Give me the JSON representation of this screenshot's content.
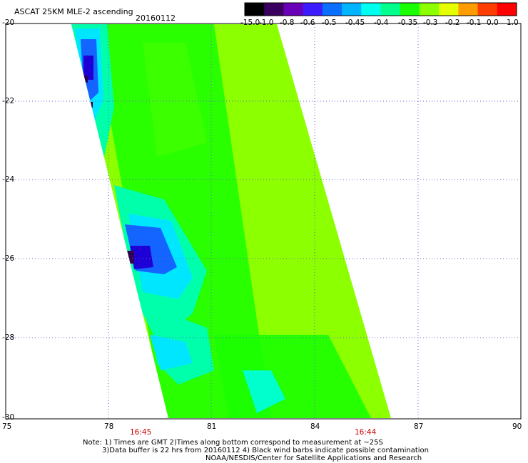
{
  "header": {
    "product": "ASCAT 25KM MLE-2 ascending",
    "date": "20160112"
  },
  "colorbar": {
    "labels": [
      "-15.0",
      "-1.0",
      "-0.8",
      "-0.6",
      "-0.5",
      "-0.45",
      "-0.4",
      "-0.35",
      "-0.3",
      "-0.2",
      "-0.1",
      "0.0",
      "1.0"
    ],
    "colors": [
      "#000000",
      "#3a0060",
      "#6a00b8",
      "#3c1cff",
      "#0a6eff",
      "#00b4ff",
      "#00ffee",
      "#00ff8c",
      "#19ff00",
      "#8cff00",
      "#e6ff00",
      "#ff9d00",
      "#ff3d00",
      "#ff0000"
    ]
  },
  "axes": {
    "x_ticks": [
      "75",
      "78",
      "81",
      "84",
      "87",
      "90"
    ],
    "y_ticks": [
      "-20",
      "-22",
      "-24",
      "-26",
      "-28",
      "-30"
    ],
    "x_range": [
      75,
      90
    ],
    "y_range": [
      -20,
      -30
    ],
    "grid": "dotted"
  },
  "swath_times": [
    "16:45",
    "16:44"
  ],
  "notes": {
    "line1": "Note: 1) Times are GMT 2)Times along bottom correspond to measurement at ~25S",
    "line2": "3)Data buffer is 22 hrs from 20160112 4) Black wind barbs indicate possible contamination",
    "line3": "NOAA/NESDIS/Center for Satellite Applications and Research"
  },
  "colors": {
    "swath_base": "#8cff00",
    "swath_green": "#19ff00",
    "swath_aqua": "#00ffaa",
    "swath_cyan": "#00e6ff",
    "swath_blue": "#1464ff",
    "swath_deep": "#1e00d6",
    "swath_dark": "#320050",
    "grid": "#6666cc",
    "time_label": "#cc0000"
  }
}
